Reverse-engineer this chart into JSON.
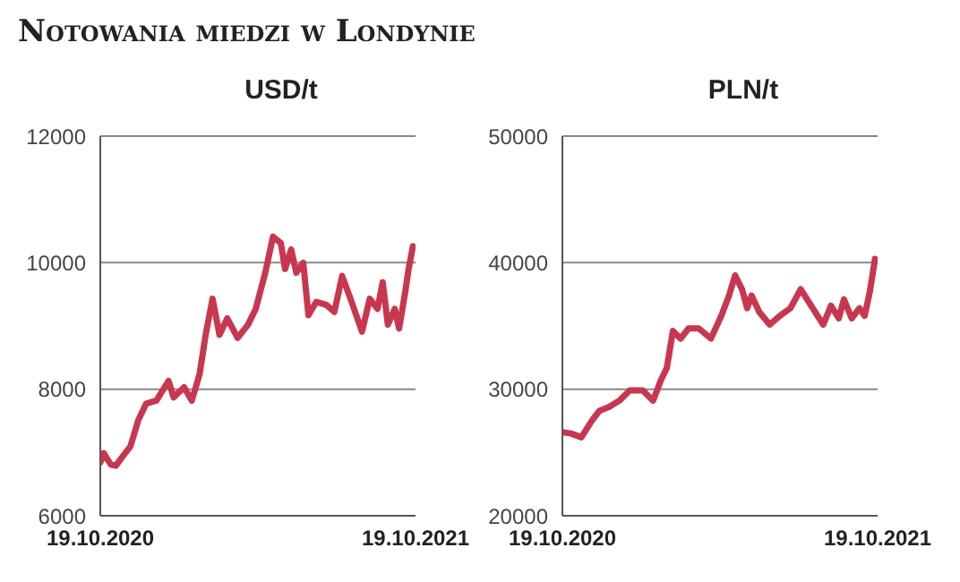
{
  "chart_data": [
    {
      "type": "line",
      "title": "Notowania miedzi w Londynie",
      "subtitle": "USD/t",
      "xlim": [
        "2020-10-19",
        "2021-10-19"
      ],
      "xticks": [
        {
          "value": "2020-10-19",
          "label": "19.10.2020"
        },
        {
          "value": "2021-10-19",
          "label": "19.10.2021"
        }
      ],
      "ylim": [
        6000,
        12000
      ],
      "yticks": [
        6000,
        8000,
        10000,
        12000
      ],
      "grid": "y",
      "marker": "none",
      "line_style": "solid",
      "legend": false,
      "series": [
        {
          "color": "#c8374f",
          "x": [
            "2020-10-19",
            "2020-10-23",
            "2020-10-31",
            "2020-11-06",
            "2020-11-14",
            "2020-11-23",
            "2020-12-02",
            "2020-12-11",
            "2020-12-23",
            "2021-01-06",
            "2021-01-12",
            "2021-01-24",
            "2021-02-02",
            "2021-02-11",
            "2021-02-18",
            "2021-02-26",
            "2021-03-06",
            "2021-03-15",
            "2021-03-27",
            "2021-04-08",
            "2021-04-17",
            "2021-04-28",
            "2021-05-07",
            "2021-05-16",
            "2021-05-21",
            "2021-05-28",
            "2021-06-03",
            "2021-06-11",
            "2021-06-17",
            "2021-06-26",
            "2021-07-08",
            "2021-07-17",
            "2021-07-26",
            "2021-08-06",
            "2021-08-18",
            "2021-08-27",
            "2021-09-05",
            "2021-09-11",
            "2021-09-17",
            "2021-09-25",
            "2021-09-30",
            "2021-10-07",
            "2021-10-11",
            "2021-10-16"
          ],
          "values": [
            6840,
            6990,
            6810,
            6790,
            6940,
            7100,
            7510,
            7770,
            7820,
            8130,
            7870,
            8030,
            7820,
            8240,
            8860,
            9430,
            8860,
            9120,
            8810,
            9020,
            9270,
            9840,
            10410,
            10310,
            9900,
            10210,
            9840,
            10000,
            9170,
            9380,
            9330,
            9220,
            9790,
            9380,
            8910,
            9430,
            9270,
            9690,
            9020,
            9270,
            8960,
            9530,
            9900,
            10260
          ]
        }
      ]
    },
    {
      "type": "line",
      "subtitle": "PLN/t",
      "xlim": [
        "2020-10-19",
        "2021-10-19"
      ],
      "xticks": [
        {
          "value": "2020-10-19",
          "label": "19.10.2020"
        },
        {
          "value": "2021-10-19",
          "label": "19.10.2021"
        }
      ],
      "ylim": [
        20000,
        50000
      ],
      "yticks": [
        20000,
        30000,
        40000,
        50000
      ],
      "grid": "y",
      "marker": "none",
      "line_style": "solid",
      "legend": false,
      "series": [
        {
          "color": "#c8374f",
          "x": [
            "2020-10-19",
            "2020-10-29",
            "2020-11-10",
            "2020-11-22",
            "2020-12-01",
            "2020-12-12",
            "2020-12-24",
            "2021-01-05",
            "2021-01-20",
            "2021-02-01",
            "2021-02-10",
            "2021-02-17",
            "2021-02-24",
            "2021-03-05",
            "2021-03-14",
            "2021-03-26",
            "2021-04-09",
            "2021-04-21",
            "2021-04-30",
            "2021-05-07",
            "2021-05-15",
            "2021-05-21",
            "2021-05-26",
            "2021-06-04",
            "2021-06-16",
            "2021-06-28",
            "2021-07-10",
            "2021-07-22",
            "2021-08-03",
            "2021-08-17",
            "2021-08-26",
            "2021-09-04",
            "2021-09-10",
            "2021-09-19",
            "2021-09-28",
            "2021-10-04",
            "2021-10-10",
            "2021-10-16"
          ],
          "values": [
            26600,
            26500,
            26200,
            27500,
            28300,
            28600,
            29100,
            29900,
            29900,
            29100,
            30700,
            31700,
            34600,
            34000,
            34800,
            34800,
            34000,
            35800,
            37400,
            39000,
            37900,
            36400,
            37400,
            36100,
            35100,
            35800,
            36400,
            37900,
            36600,
            35100,
            36600,
            35600,
            37100,
            35600,
            36400,
            35800,
            37700,
            40300
          ]
        }
      ]
    }
  ]
}
